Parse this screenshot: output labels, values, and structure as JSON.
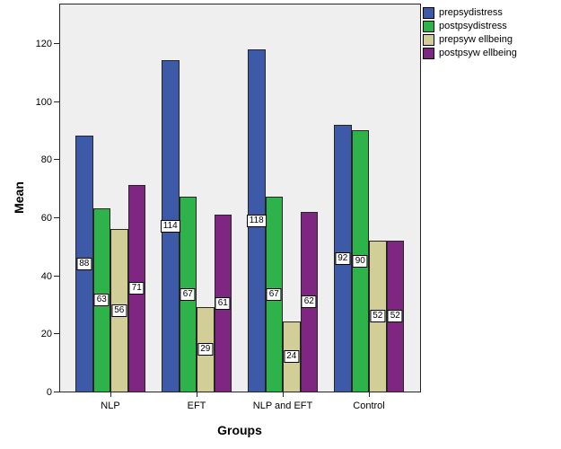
{
  "chart_data": {
    "type": "bar",
    "title": "",
    "xlabel": "Groups",
    "ylabel": "Mean",
    "categories": [
      "NLP",
      "EFT",
      "NLP and EFT",
      "Control"
    ],
    "series": [
      {
        "name": "prepsydistress",
        "color": "#3D5AA8",
        "values": [
          88,
          114,
          118,
          92
        ]
      },
      {
        "name": "postpsydistress",
        "color": "#2EB24A",
        "values": [
          63,
          67,
          67,
          90
        ]
      },
      {
        "name": "prepsyw ellbeing",
        "color": "#D3CD97",
        "values": [
          56,
          29,
          24,
          52
        ]
      },
      {
        "name": "postpsyw ellbeing",
        "color": "#7E2682",
        "values": [
          71,
          61,
          62,
          52
        ]
      }
    ],
    "ylim": [
      0,
      134
    ],
    "yticks": [
      0,
      20,
      40,
      60,
      80,
      100,
      120
    ],
    "grid": false,
    "bar_labels": true,
    "legend_position": "top-right",
    "plot_bg": "#EFEFEF",
    "outer_bg": "#FFFFFF"
  }
}
